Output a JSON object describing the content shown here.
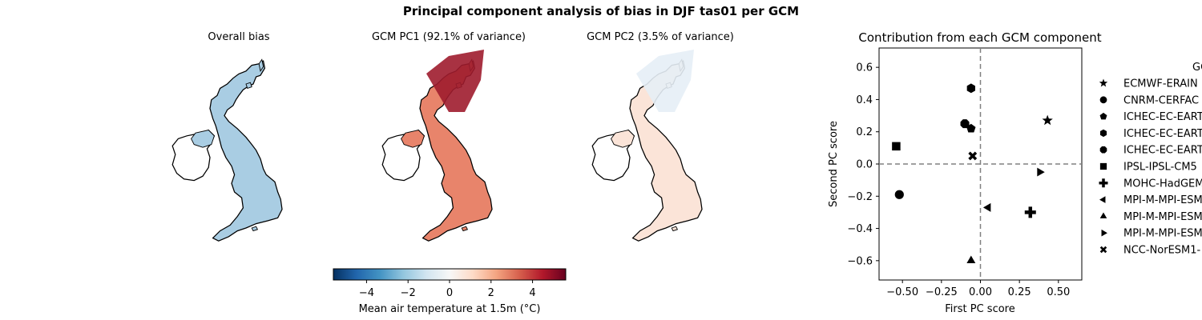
{
  "figure": {
    "suptitle": "Principal component analysis of bias in DJF tas01 per GCM"
  },
  "maps": [
    {
      "title": "Overall bias",
      "field": "overall"
    },
    {
      "title": "GCM PC1 (92.1% of variance)",
      "field": "pc1"
    },
    {
      "title": "GCM PC2 (3.5% of variance)",
      "field": "pc2"
    }
  ],
  "colorbar": {
    "label": "Mean air temperature at 1.5m (°C)",
    "ticks": [
      -4,
      -2,
      0,
      2,
      4
    ],
    "tick_labels": [
      "−4",
      "−2",
      "0",
      "2",
      "4"
    ],
    "range": [
      -5.6,
      5.6
    ],
    "cmap": [
      "#053061",
      "#2166ac",
      "#4393c3",
      "#92c5de",
      "#d1e5f0",
      "#f7f7f7",
      "#fddbc7",
      "#f4a582",
      "#d6604d",
      "#b2182b",
      "#67001f"
    ]
  },
  "chart_data": {
    "type": "scatter",
    "title": "Contribution from each GCM component",
    "xlabel": "First PC score",
    "ylabel": "Second PC score",
    "xlim": [
      -0.65,
      0.65
    ],
    "ylim": [
      -0.72,
      0.72
    ],
    "xticks": [
      -0.5,
      -0.25,
      0.0,
      0.25,
      0.5
    ],
    "xtick_labels": [
      "−0.50",
      "−0.25",
      "0.00",
      "0.25",
      "0.50"
    ],
    "yticks": [
      -0.6,
      -0.4,
      -0.2,
      0.0,
      0.2,
      0.4,
      0.6
    ],
    "ytick_labels": [
      "−0.6",
      "−0.4",
      "−0.2",
      "0.0",
      "0.2",
      "0.4",
      "0.6"
    ],
    "reference_lines": {
      "x": 0,
      "y": 0,
      "style": "dashed",
      "color": "#808080"
    },
    "legend_title": "GC",
    "legend_placement": "outside right",
    "series": [
      {
        "name": "ECMWF-ERAIN",
        "marker": "star",
        "x": 0.43,
        "y": 0.27
      },
      {
        "name": "CNRM-CERFAC",
        "marker": "circle",
        "x": -0.52,
        "y": -0.19
      },
      {
        "name": "ICHEC-EC-EART",
        "marker": "pentagon",
        "x": -0.06,
        "y": 0.22
      },
      {
        "name": "ICHEC-EC-EART",
        "marker": "hexagon",
        "x": -0.06,
        "y": 0.47
      },
      {
        "name": "ICHEC-EC-EART",
        "marker": "octagon",
        "x": -0.1,
        "y": 0.25
      },
      {
        "name": "IPSL-IPSL-CM5",
        "marker": "square",
        "x": -0.54,
        "y": 0.11
      },
      {
        "name": "MOHC-HadGEM",
        "marker": "plus",
        "x": 0.32,
        "y": -0.3
      },
      {
        "name": "MPI-M-MPI-ESM",
        "marker": "triangle-left",
        "x": 0.05,
        "y": -0.27
      },
      {
        "name": "MPI-M-MPI-ESM",
        "marker": "triangle-up",
        "x": -0.06,
        "y": -0.6
      },
      {
        "name": "MPI-M-MPI-ESM",
        "marker": "triangle-right",
        "x": 0.38,
        "y": -0.05
      },
      {
        "name": "NCC-NorESM1-",
        "marker": "x",
        "x": -0.05,
        "y": 0.05
      }
    ]
  }
}
